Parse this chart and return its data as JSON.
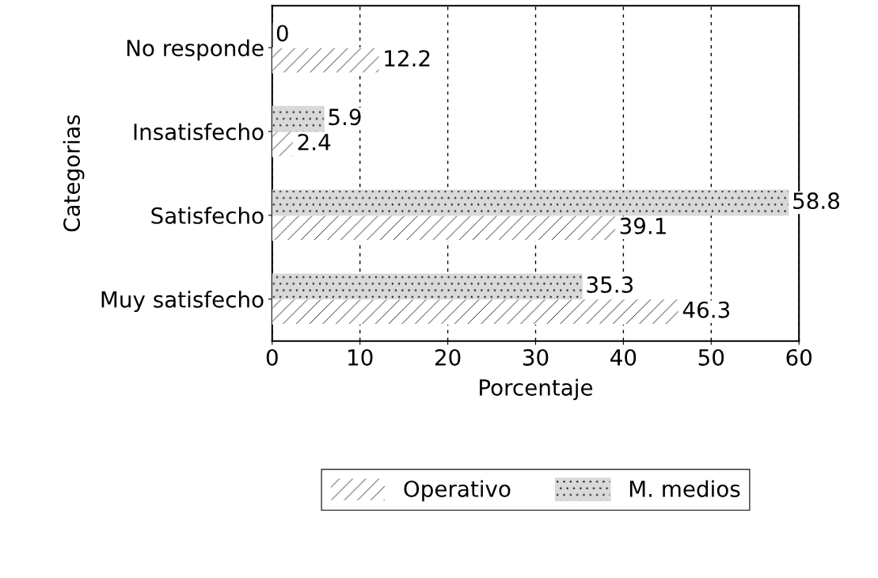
{
  "chart_data": {
    "type": "bar",
    "orientation": "horizontal",
    "xlabel": "Porcentaje",
    "ylabel": "Categorias",
    "categories": [
      "No responde",
      "Insatisfecho",
      "Satisfecho",
      "Muy satisfecho"
    ],
    "series": [
      {
        "name": "Operativo",
        "color": "#ffffff",
        "values": [
          12.2,
          2.4,
          39.1,
          46.3
        ]
      },
      {
        "name": "M. medios",
        "color": "#d9d9d9",
        "values": [
          0,
          5.9,
          58.8,
          35.3
        ]
      }
    ],
    "xlim": [
      0,
      60
    ],
    "xticks": [
      0,
      10,
      20,
      30,
      40,
      50,
      60
    ],
    "grid": "x",
    "legend": "bottom",
    "data_labels": true
  }
}
